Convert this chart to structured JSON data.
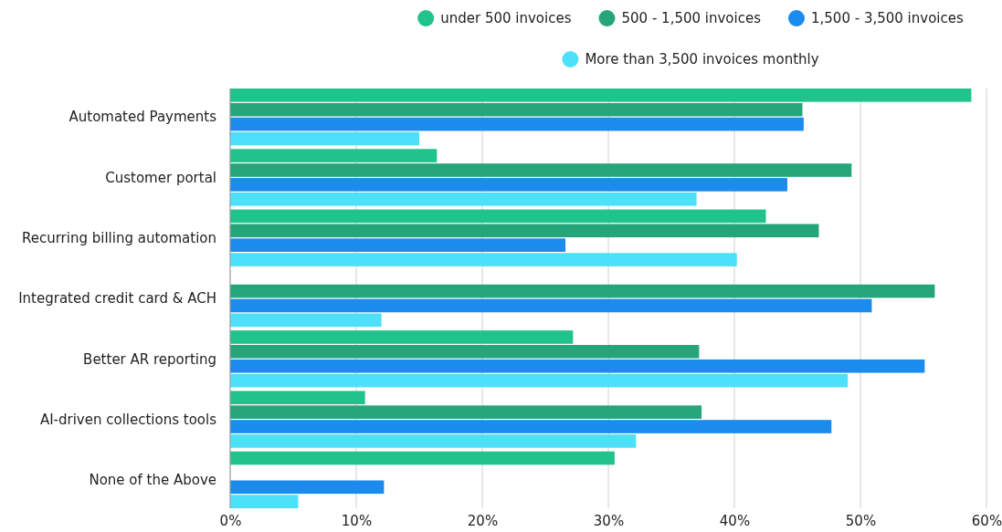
{
  "chart_data": {
    "type": "bar",
    "orientation": "horizontal",
    "categories": [
      "Automated Payments",
      "Customer portal",
      "Recurring billing automation",
      "Integrated credit card & ACH",
      "Better AR reporting",
      "AI-driven collections tools",
      "None of the Above"
    ],
    "series": [
      {
        "name": "under 500 invoices",
        "color": "#20c38b",
        "values": [
          58.8,
          16.4,
          42.5,
          0,
          27.2,
          10.7,
          30.5
        ]
      },
      {
        "name": "500 - 1,500 invoices",
        "color": "#27a57a",
        "values": [
          45.4,
          49.3,
          46.7,
          55.9,
          37.2,
          37.4,
          0
        ]
      },
      {
        "name": "1,500 - 3,500 invoices",
        "color": "#1b8bee",
        "values": [
          45.5,
          44.2,
          26.6,
          50.9,
          55.1,
          47.7,
          12.2
        ]
      },
      {
        "name": "More than 3,500 invoices monthly",
        "color": "#4de0f9",
        "values": [
          15.0,
          37.0,
          40.2,
          12.0,
          49.0,
          32.2,
          5.4
        ]
      }
    ],
    "xlim": [
      0,
      60
    ],
    "xticks": [
      {
        "value": 0,
        "label": "0%"
      },
      {
        "value": 10,
        "label": "10%"
      },
      {
        "value": 20,
        "label": "20%"
      },
      {
        "value": 30,
        "label": "30%"
      },
      {
        "value": 40,
        "label": "40%"
      },
      {
        "value": 50,
        "label": "50%"
      },
      {
        "value": 60,
        "label": "60%"
      }
    ],
    "grid": "x",
    "legend": "top"
  }
}
